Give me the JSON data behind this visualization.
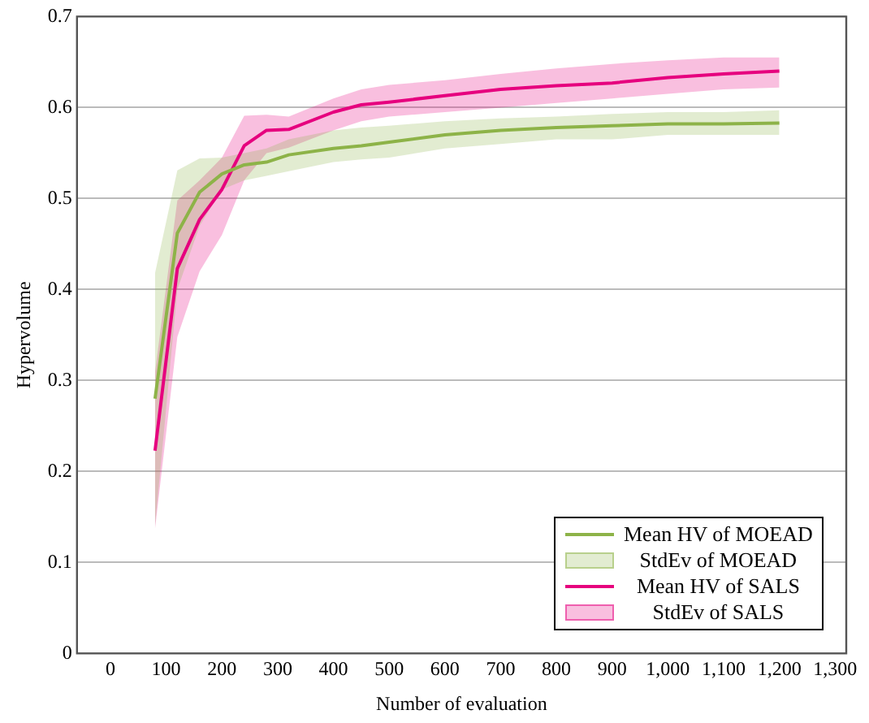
{
  "chart_data": {
    "type": "line",
    "xlabel": "Number of evaluation",
    "ylabel": "Hypervolume",
    "annotations": [
      "StdEv of MOEAD",
      "StdEv of SALS"
    ],
    "x": [
      80,
      120,
      160,
      200,
      240,
      280,
      320,
      400,
      450,
      500,
      600,
      700,
      800,
      900,
      1000,
      1100,
      1200
    ],
    "series": [
      {
        "name": "Mean HV of MOEAD",
        "type": "line",
        "color": "#8db348",
        "values": [
          0.28,
          0.462,
          0.507,
          0.527,
          0.537,
          0.54,
          0.548,
          0.555,
          0.558,
          0.562,
          0.57,
          0.575,
          0.578,
          0.58,
          0.582,
          0.582,
          0.583
        ],
        "lower": [
          0.14,
          0.4,
          0.47,
          0.51,
          0.52,
          0.525,
          0.53,
          0.54,
          0.543,
          0.545,
          0.555,
          0.56,
          0.565,
          0.565,
          0.57,
          0.57,
          0.57
        ],
        "upper": [
          0.418,
          0.531,
          0.544,
          0.545,
          0.55,
          0.555,
          0.565,
          0.575,
          0.578,
          0.58,
          0.585,
          0.588,
          0.59,
          0.593,
          0.595,
          0.595,
          0.597
        ]
      },
      {
        "name": "Mean HV of SALS",
        "type": "line",
        "color": "#e6007e",
        "values": [
          0.223,
          0.423,
          0.477,
          0.51,
          0.558,
          0.575,
          0.576,
          0.595,
          0.603,
          0.606,
          0.613,
          0.62,
          0.624,
          0.627,
          0.633,
          0.637,
          0.64
        ],
        "lower": [
          0.137,
          0.348,
          0.42,
          0.46,
          0.52,
          0.55,
          0.556,
          0.575,
          0.585,
          0.59,
          0.595,
          0.6,
          0.605,
          0.61,
          0.615,
          0.62,
          0.622
        ],
        "upper": [
          0.309,
          0.498,
          0.52,
          0.545,
          0.591,
          0.592,
          0.59,
          0.61,
          0.62,
          0.625,
          0.63,
          0.637,
          0.643,
          0.648,
          0.652,
          0.655,
          0.655
        ]
      }
    ],
    "xlim": [
      -60,
      1320
    ],
    "xticks": [
      0,
      100,
      200,
      300,
      400,
      500,
      600,
      700,
      800,
      900,
      {
        "value": 1000,
        "label": "1,000"
      },
      {
        "value": 1100,
        "label": "1,100"
      },
      {
        "value": 1200,
        "label": "1,200"
      },
      {
        "value": 1300,
        "label": "1,300"
      }
    ],
    "ylim": [
      0,
      0.7
    ],
    "yticks": [
      0,
      0.1,
      0.2,
      0.3,
      0.4,
      0.5,
      0.6,
      0.7
    ],
    "grid": "y",
    "legend": "bottom right",
    "marker": "none",
    "line_style": "solid"
  }
}
